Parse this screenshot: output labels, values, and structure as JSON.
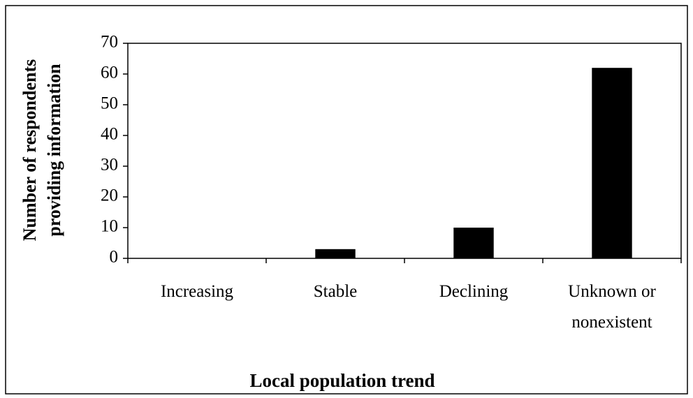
{
  "chart_data": {
    "type": "bar",
    "y_label": [
      "Number of respondents",
      "providing information"
    ],
    "x_label": "Local population trend",
    "categories": [
      "Increasing",
      "Stable",
      "Declining",
      "Unknown or nonexistent"
    ],
    "values": [
      0,
      3,
      10,
      62
    ],
    "color": "#000000",
    "ylim": [
      0,
      70
    ],
    "yticks": [
      0,
      10,
      20,
      30,
      40,
      50,
      60,
      70
    ],
    "grid": false
  }
}
